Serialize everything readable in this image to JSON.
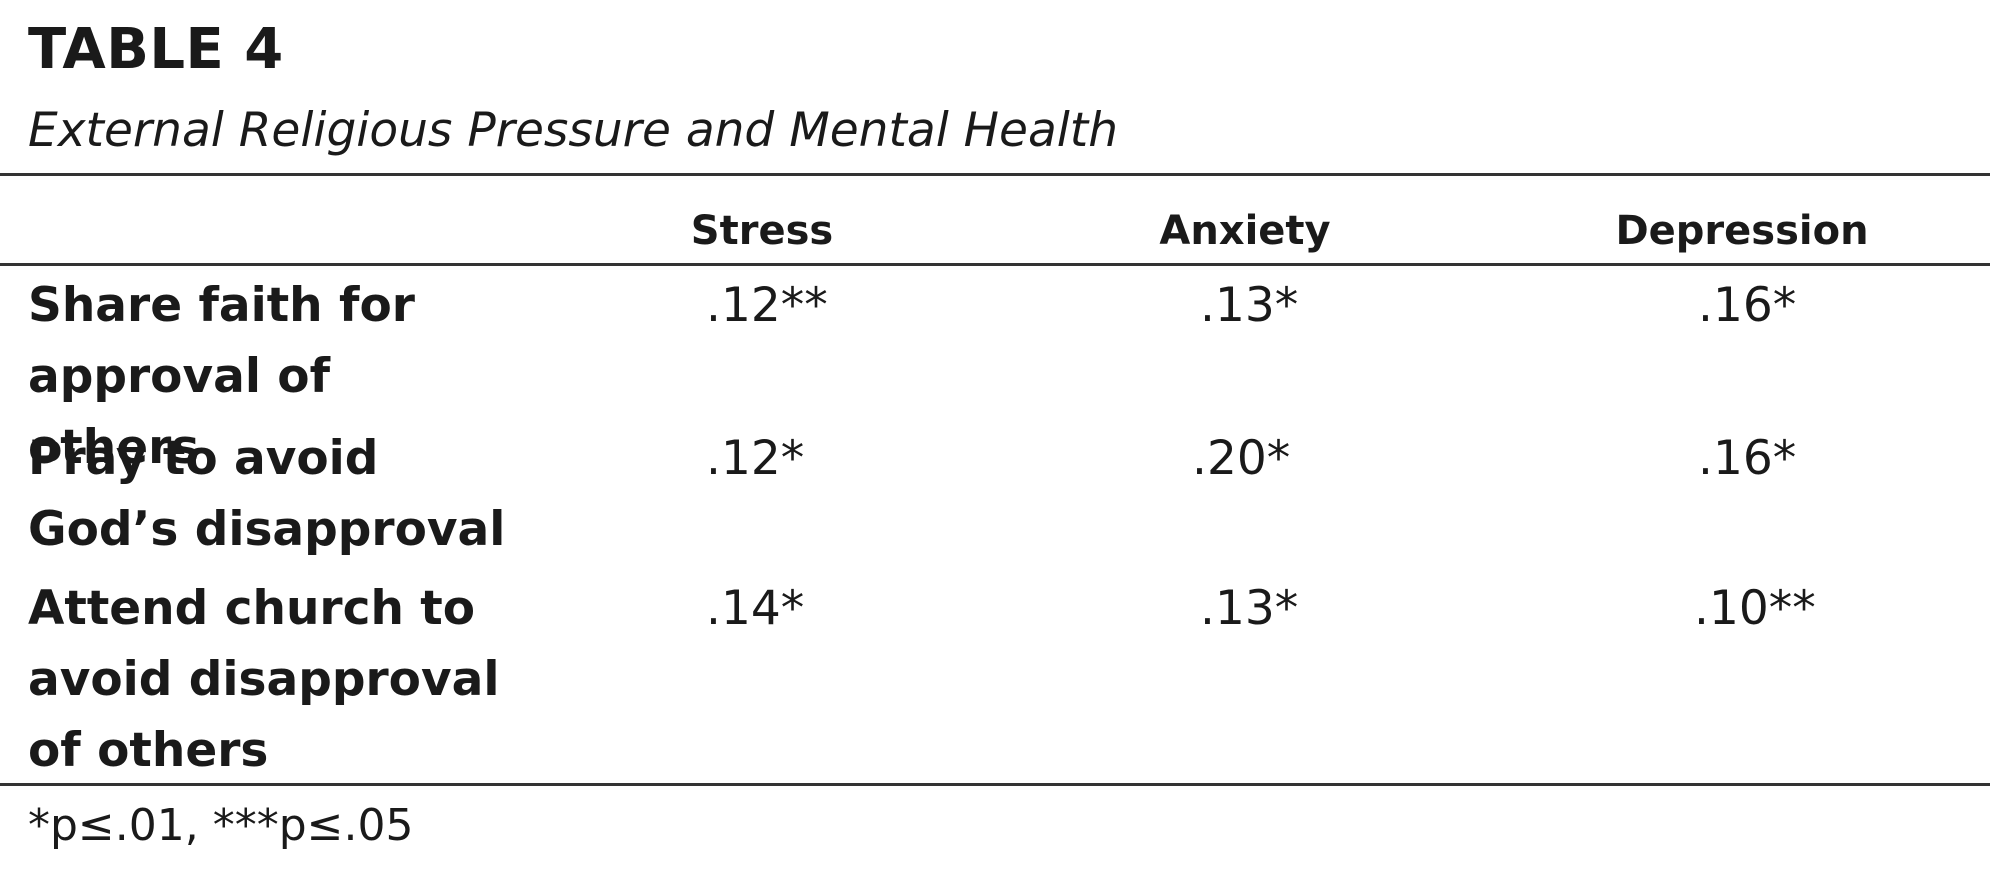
{
  "table": {
    "label": "TABLE 4",
    "caption": "External Religious Pressure and Mental Health",
    "columns": [
      "Stress",
      "Anxiety",
      "Depression"
    ],
    "rows": [
      {
        "label": "Share faith for approval of others",
        "values": [
          ".12**",
          ".13*",
          ".16*"
        ]
      },
      {
        "label": "Pray to avoid God’s disapproval",
        "values": [
          ".12*",
          ".20*",
          ".16*"
        ]
      },
      {
        "label": "Attend church to avoid disapproval of others",
        "values": [
          ".14*",
          ".13*",
          ".10**"
        ]
      }
    ],
    "footnote": "*p≤.01, ***p≤.05"
  }
}
